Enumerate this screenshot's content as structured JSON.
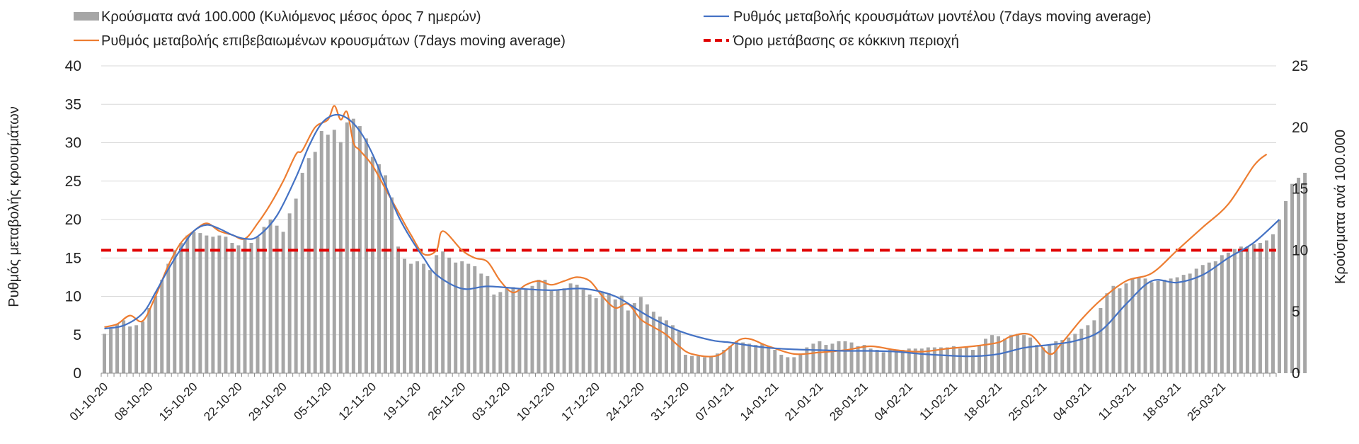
{
  "chart_data": {
    "type": "bar",
    "legend": {
      "bars": "Κρούσματα ανά 100.000 (Κυλιόμενος μέσος όρος 7 ημερών)",
      "model_line": "Ρυθμός μεταβολής κρουσμάτων μοντέλου (7days moving average)",
      "confirmed_line": "Ρυθμός μεταβολής επιβεβαιωμένων κρουσμάτων (7days moving average)",
      "threshold": "Όριο μετάβασης σε κόκκινη περιοχή",
      "placement": "top"
    },
    "ylabel_left": "Ρυθμός μεταβολής κρουσμάτων",
    "ylabel_right": "Κρούσματα ανά 100.000",
    "ylim_left": [
      0,
      40
    ],
    "yticks_left": [
      "0",
      "5",
      "10",
      "15",
      "20",
      "25",
      "30",
      "35",
      "40"
    ],
    "ylim_right": [
      0,
      25
    ],
    "yticks_right": [
      "0",
      "5",
      "10",
      "15",
      "20",
      "25"
    ],
    "xtick_labels": [
      "01-10-20",
      "08-10-20",
      "15-10-20",
      "22-10-20",
      "29-10-20",
      "05-11-20",
      "12-11-20",
      "19-11-20",
      "26-11-20",
      "03-12-20",
      "10-12-20",
      "17-12-20",
      "24-12-20",
      "31-12-20",
      "07-01-21",
      "14-01-21",
      "21-01-21",
      "28-01-21",
      "04-02-21",
      "11-02-21",
      "18-02-21",
      "25-02-21",
      "04-03-21",
      "11-03-21",
      "18-03-21",
      "25-03-21"
    ],
    "days": 184,
    "threshold_value": 16,
    "series": [
      {
        "name": "Κρούσματα ανά 100.000 (Κυλιόμενος μέσος όρος 7 ημερών)",
        "axis": "right",
        "color": "#a6a6a6",
        "values": [
          3.2,
          3.6,
          4.0,
          4.3,
          3.8,
          3.9,
          4.2,
          5.3,
          6.3,
          7.6,
          8.9,
          10.0,
          10.6,
          11.2,
          11.5,
          11.4,
          11.2,
          11.1,
          11.2,
          11.1,
          10.6,
          10.4,
          10.9,
          10.6,
          11.1,
          11.9,
          12.5,
          12.0,
          11.5,
          13.0,
          14.2,
          16.3,
          17.5,
          18.0,
          19.7,
          19.4,
          19.8,
          18.8,
          20.4,
          20.7,
          20.1,
          19.1,
          17.6,
          17.0,
          16.1,
          14.3,
          10.3,
          9.3,
          8.9,
          9.1,
          8.9,
          8.4,
          9.6,
          9.9,
          9.4,
          9.0,
          9.1,
          8.9,
          8.7,
          8.1,
          7.9,
          6.4,
          6.6,
          6.9,
          7.0,
          6.9,
          6.8,
          7.1,
          7.6,
          7.6,
          6.7,
          6.8,
          6.9,
          7.3,
          7.2,
          6.8,
          6.4,
          6.1,
          6.6,
          6.5,
          6.0,
          6.3,
          5.1,
          5.7,
          6.2,
          5.6,
          5.0,
          4.6,
          4.3,
          3.9,
          3.4,
          1.5,
          1.4,
          1.4,
          1.3,
          1.4,
          1.6,
          1.9,
          2.2,
          2.6,
          2.5,
          2.4,
          2.3,
          2.4,
          2.2,
          1.9,
          1.5,
          1.3,
          1.3,
          1.6,
          2.1,
          2.4,
          2.6,
          2.3,
          2.4,
          2.6,
          2.6,
          2.5,
          2.2,
          2.3,
          2.0,
          1.9,
          1.7,
          1.9,
          1.9,
          1.9,
          2.0,
          2.0,
          2.0,
          2.1,
          2.1,
          2.1,
          2.1,
          2.2,
          2.0,
          2.1,
          1.9,
          2.3,
          2.8,
          3.1,
          3.0,
          2.8,
          3.1,
          3.2,
          3.1,
          2.9,
          2.3,
          2.1,
          2.3,
          2.6,
          2.7,
          2.9,
          3.2,
          3.6,
          3.9,
          4.3,
          5.3,
          6.5,
          7.1,
          6.9,
          7.3,
          7.7,
          7.8,
          7.7,
          7.4,
          7.5,
          7.6,
          7.7,
          7.8,
          8.0,
          8.1,
          8.5,
          8.8,
          9.0,
          9.1,
          9.6,
          9.8,
          10.1,
          10.3,
          10.3,
          10.5,
          10.6,
          10.8,
          11.3,
          12.5,
          14.0,
          15.4,
          15.9,
          16.3
        ]
      },
      {
        "name": "Ρυθμός μεταβολής κρουσμάτων μοντέλου (7days moving average)",
        "axis": "left",
        "color": "#4472c4",
        "x": [
          0,
          3,
          6,
          8,
          10,
          12,
          14,
          16,
          18,
          20,
          22,
          24,
          27,
          30,
          32,
          34,
          36,
          38,
          40,
          42,
          44,
          46,
          48,
          50,
          52,
          56,
          60,
          65,
          70,
          75,
          80,
          85,
          90,
          95,
          98,
          101,
          104,
          108,
          112,
          116,
          120,
          124,
          128,
          132,
          136,
          140,
          144,
          148,
          152,
          156,
          160,
          164,
          168,
          172,
          176,
          180,
          184
        ],
        "y": [
          5.8,
          6.2,
          7.8,
          10.5,
          13.5,
          16.2,
          18.5,
          19.3,
          18.8,
          18.0,
          17.5,
          17.8,
          20.5,
          25.5,
          29.5,
          32.5,
          33.6,
          33.2,
          31.5,
          28.5,
          24.5,
          20.5,
          17.5,
          15.0,
          12.8,
          11.0,
          11.3,
          11.0,
          10.8,
          11.0,
          10.0,
          7.5,
          5.5,
          4.3,
          4.0,
          3.6,
          3.3,
          3.1,
          3.0,
          2.9,
          2.9,
          2.8,
          2.5,
          2.3,
          2.2,
          2.5,
          3.3,
          3.7,
          4.2,
          5.5,
          9.0,
          12.0,
          11.8,
          12.8,
          15.0,
          17.0,
          20.0
        ]
      },
      {
        "name": "Ρυθμός μεταβολής επιβεβαιωμένων κρουσμάτων (7days moving average)",
        "axis": "left",
        "color": "#ed7d31",
        "x": [
          0,
          2,
          4,
          6,
          8,
          10,
          12,
          14,
          16,
          18,
          20,
          22,
          24,
          26,
          28,
          30,
          31,
          33,
          35,
          36,
          37,
          38,
          39,
          40,
          42,
          44,
          46,
          48,
          50,
          52,
          53,
          56,
          58,
          60,
          62,
          64,
          66,
          68,
          70,
          72,
          74,
          76,
          78,
          80,
          82,
          84,
          86,
          88,
          90,
          92,
          96,
          100,
          104,
          108,
          112,
          116,
          120,
          124,
          128,
          132,
          136,
          140,
          142,
          145,
          148,
          150,
          153,
          156,
          160,
          164,
          168,
          172,
          176,
          180,
          182
        ],
        "y": [
          6.0,
          6.4,
          7.5,
          6.8,
          10.0,
          14.0,
          17.0,
          18.5,
          19.5,
          18.5,
          18.0,
          17.5,
          19.5,
          22.0,
          25.0,
          28.5,
          29.0,
          32.0,
          33.0,
          34.8,
          33.0,
          34.0,
          30.0,
          29.0,
          27.0,
          24.0,
          21.0,
          18.0,
          15.5,
          16.0,
          18.5,
          16.0,
          15.0,
          14.5,
          12.0,
          10.5,
          11.5,
          12.0,
          11.5,
          12.0,
          12.5,
          12.0,
          10.0,
          8.5,
          9.0,
          7.0,
          6.0,
          5.0,
          3.5,
          2.5,
          2.3,
          4.5,
          3.5,
          2.5,
          2.7,
          3.0,
          3.5,
          3.0,
          2.8,
          3.2,
          3.5,
          4.0,
          4.8,
          5.0,
          2.5,
          4.0,
          7.0,
          9.5,
          12.0,
          13.0,
          16.0,
          19.0,
          22.0,
          27.0,
          28.5
        ]
      }
    ]
  }
}
